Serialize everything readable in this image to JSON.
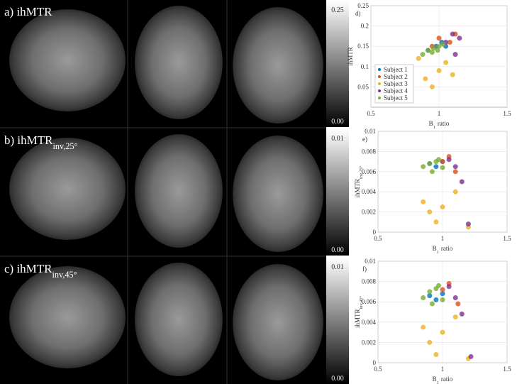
{
  "figure": {
    "panels": [
      {
        "label": "a) ihMTR"
      },
      {
        "label": "b) ihMTR",
        "sub": "inv,25°"
      },
      {
        "label": "c) ihMTR",
        "sub": "inv,45°"
      }
    ],
    "colorbars": [
      {
        "max": "0.25",
        "min": "0.00"
      },
      {
        "max": "0.01",
        "min": "0.00"
      },
      {
        "max": "0.01",
        "min": "0.00"
      }
    ]
  },
  "chart_data": [
    {
      "type": "scatter",
      "annotation": "d)",
      "x_label": {
        "main": "B",
        "sub": "1",
        "rest": "ratio"
      },
      "y_label": {
        "main": "ihMTR"
      },
      "xlim": [
        0.5,
        1.5
      ],
      "xticks": [
        0.5,
        1,
        1.5
      ],
      "ylim": [
        0,
        0.25
      ],
      "yticks": [
        0.05,
        0.1,
        0.15,
        0.2,
        0.25
      ],
      "grid": true,
      "legend": "lower-left",
      "series": [
        {
          "name": "Subject 1",
          "color": "#0072bd",
          "x": [
            0.92,
            0.98,
            1.02,
            1.05
          ],
          "values": [
            0.14,
            0.15,
            0.16,
            0.15
          ]
        },
        {
          "name": "Subject 2",
          "color": "#d95319",
          "x": [
            0.95,
            1.0,
            1.08,
            1.12
          ],
          "values": [
            0.15,
            0.17,
            0.16,
            0.18
          ]
        },
        {
          "name": "Subject 3",
          "color": "#edb120",
          "x": [
            0.85,
            0.9,
            0.95,
            1.0,
            1.05,
            1.1
          ],
          "values": [
            0.12,
            0.07,
            0.05,
            0.09,
            0.11,
            0.08
          ]
        },
        {
          "name": "Subject 4",
          "color": "#7e2f8e",
          "x": [
            1.05,
            1.1,
            1.15,
            1.12
          ],
          "values": [
            0.16,
            0.18,
            0.17,
            0.13
          ]
        },
        {
          "name": "Subject 5",
          "color": "#77ac30",
          "x": [
            0.88,
            0.92,
            0.96,
            1.0,
            1.03,
            0.95,
            0.99
          ],
          "values": [
            0.13,
            0.14,
            0.145,
            0.15,
            0.155,
            0.135,
            0.14
          ]
        }
      ]
    },
    {
      "type": "scatter",
      "annotation": "e)",
      "x_label": {
        "main": "B",
        "sub": "1",
        "rest": "ratio"
      },
      "y_label": {
        "main": "ihMTR",
        "sub": "inv,25°"
      },
      "xlim": [
        0.5,
        1.5
      ],
      "xticks": [
        0.5,
        1,
        1.5
      ],
      "ylim": [
        0,
        0.01
      ],
      "yticks": [
        0,
        0.002,
        0.004,
        0.006,
        0.008,
        0.01
      ],
      "grid": true,
      "series": [
        {
          "color": "#0072bd",
          "x": [
            0.9,
            0.95,
            1.0
          ],
          "values": [
            0.0068,
            0.0065,
            0.007
          ]
        },
        {
          "color": "#d95319",
          "x": [
            1.0,
            1.05,
            1.1
          ],
          "values": [
            0.007,
            0.0075,
            0.006
          ]
        },
        {
          "color": "#edb120",
          "x": [
            0.85,
            0.9,
            0.95,
            1.0,
            1.1,
            1.2
          ],
          "values": [
            0.003,
            0.002,
            0.001,
            0.0025,
            0.004,
            0.0005
          ]
        },
        {
          "color": "#7e2f8e",
          "x": [
            1.05,
            1.1,
            1.15,
            1.2
          ],
          "values": [
            0.0072,
            0.0065,
            0.005,
            0.0008
          ]
        },
        {
          "color": "#77ac30",
          "x": [
            0.85,
            0.9,
            0.95,
            1.0,
            0.92,
            0.97
          ],
          "values": [
            0.0065,
            0.0068,
            0.007,
            0.0064,
            0.006,
            0.0072
          ]
        }
      ]
    },
    {
      "type": "scatter",
      "annotation": "f)",
      "x_label": {
        "main": "B",
        "sub": "1",
        "rest": "ratio"
      },
      "y_label": {
        "main": "ihMTR",
        "sub": "inv,45°"
      },
      "xlim": [
        0.5,
        1.5
      ],
      "xticks": [
        0.5,
        1,
        1.5
      ],
      "ylim": [
        0,
        0.01
      ],
      "yticks": [
        0,
        0.002,
        0.004,
        0.006,
        0.008,
        0.01
      ],
      "grid": true,
      "series": [
        {
          "color": "#0072bd",
          "x": [
            0.9,
            0.95,
            1.0
          ],
          "values": [
            0.0066,
            0.0062,
            0.0068
          ]
        },
        {
          "color": "#d95319",
          "x": [
            1.0,
            1.05,
            1.12
          ],
          "values": [
            0.0072,
            0.0078,
            0.0058
          ]
        },
        {
          "color": "#edb120",
          "x": [
            0.85,
            0.9,
            0.95,
            1.0,
            1.1,
            1.2
          ],
          "values": [
            0.0035,
            0.002,
            0.0008,
            0.003,
            0.0045,
            0.0004
          ]
        },
        {
          "color": "#7e2f8e",
          "x": [
            1.05,
            1.1,
            1.15,
            1.22
          ],
          "values": [
            0.0075,
            0.0064,
            0.0048,
            0.0006
          ]
        },
        {
          "color": "#77ac30",
          "x": [
            0.85,
            0.9,
            0.95,
            1.0,
            0.92,
            0.97
          ],
          "values": [
            0.0064,
            0.007,
            0.0073,
            0.0062,
            0.0058,
            0.0076
          ]
        }
      ]
    }
  ]
}
